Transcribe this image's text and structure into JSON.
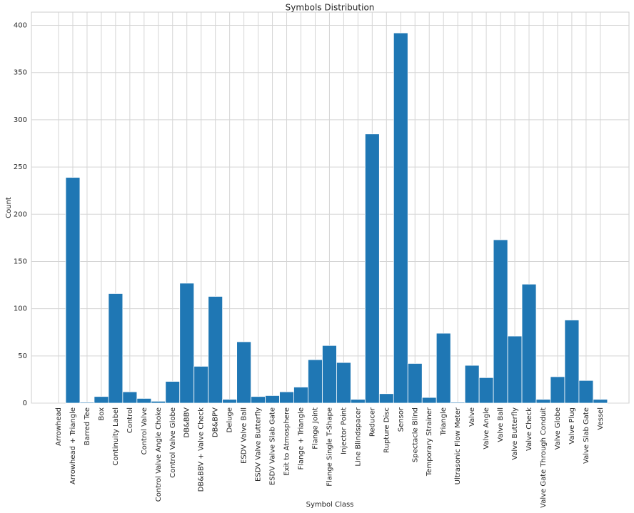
{
  "chart_data": {
    "type": "bar",
    "title": "Symbols Distribution",
    "x_label": "Symbol Class",
    "y_label": "Count",
    "categories": [
      "Arrowhead",
      "Arrowhead + Triangle",
      "Barred Tee",
      "Box",
      "Continuity Label",
      "Control",
      "Control Valve",
      "Control Valve Angle Choke",
      "Control Valve Globe",
      "DB&BBV",
      "DB&BBV + Valve Check",
      "DB&BPV",
      "Deluge",
      "ESDV Valve Ball",
      "ESDV Valve Butterfly",
      "ESDV Valve Slab Gate",
      "Exit to Atmosphere",
      "Flange + Triangle",
      "Flange Joint",
      "Flange Single T-Shape",
      "Injector Point",
      "Line Blindspacer",
      "Reducer",
      "Rupture Disc",
      "Sensor",
      "Spectacle Blind",
      "Temporary Strainer",
      "Triangle",
      "Ultrasonic Flow Meter",
      "Valve",
      "Valve Angle",
      "Valve Ball",
      "Valve Butterfly",
      "Valve Check",
      "Valve Gate Through Conduit",
      "Valve Globe",
      "Valve Plug",
      "Valve Slab Gate",
      "Vessel"
    ],
    "values": [
      0,
      239,
      1,
      7,
      116,
      12,
      5,
      2,
      23,
      127,
      39,
      113,
      4,
      65,
      7,
      8,
      12,
      17,
      46,
      61,
      43,
      4,
      285,
      10,
      392,
      42,
      6,
      74,
      1,
      40,
      27,
      173,
      71,
      126,
      4,
      28,
      88,
      24,
      4
    ],
    "color": "#1f77b4",
    "ylim": [
      0,
      414
    ],
    "yticks": [
      0,
      50,
      100,
      150,
      200,
      250,
      300,
      350,
      400
    ],
    "grid": true
  }
}
